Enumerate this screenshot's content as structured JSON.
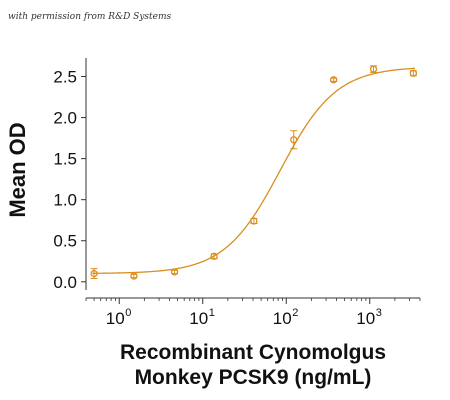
{
  "credit": "with permission from R&D Systems",
  "chart_data": {
    "type": "scatter",
    "title": "",
    "xlabel": [
      "Recombinant Cynomolgus",
      "Monkey PCSK9 (ng/mL)"
    ],
    "ylabel": "Mean OD",
    "x_scale": "log",
    "xlim": [
      0.4,
      4000
    ],
    "ylim": [
      -0.1,
      2.75
    ],
    "x_ticks": [
      {
        "value": 1,
        "base": "10",
        "exp": "0"
      },
      {
        "value": 10,
        "base": "10",
        "exp": "1"
      },
      {
        "value": 100,
        "base": "10",
        "exp": "2"
      },
      {
        "value": 1000,
        "base": "10",
        "exp": "3"
      }
    ],
    "y_ticks": [
      {
        "value": 0.0,
        "label": "0.0"
      },
      {
        "value": 0.5,
        "label": "0.5"
      },
      {
        "value": 1.0,
        "label": "1.0"
      },
      {
        "value": 1.5,
        "label": "1.5"
      },
      {
        "value": 2.0,
        "label": "2.0"
      },
      {
        "value": 2.5,
        "label": "2.5"
      }
    ],
    "series": [
      {
        "color": "#D98E1F",
        "points": [
          {
            "x": 0.5,
            "y": 0.1,
            "err": 0.06
          },
          {
            "x": 1.5,
            "y": 0.07,
            "err": 0.02
          },
          {
            "x": 4.6,
            "y": 0.12,
            "err": 0.02
          },
          {
            "x": 13.7,
            "y": 0.31,
            "err": 0.03
          },
          {
            "x": 41,
            "y": 0.74,
            "err": 0.03
          },
          {
            "x": 123,
            "y": 1.73,
            "err": 0.11
          },
          {
            "x": 370,
            "y": 2.46,
            "err": 0.02
          },
          {
            "x": 1111,
            "y": 2.59,
            "err": 0.04
          },
          {
            "x": 3333,
            "y": 2.54,
            "err": 0.03
          }
        ],
        "fit": {
          "model": "4PL",
          "bottom": 0.1,
          "top": 2.62,
          "ec50": 85,
          "hill": 1.3
        }
      }
    ],
    "grid": false,
    "legend": "none"
  }
}
